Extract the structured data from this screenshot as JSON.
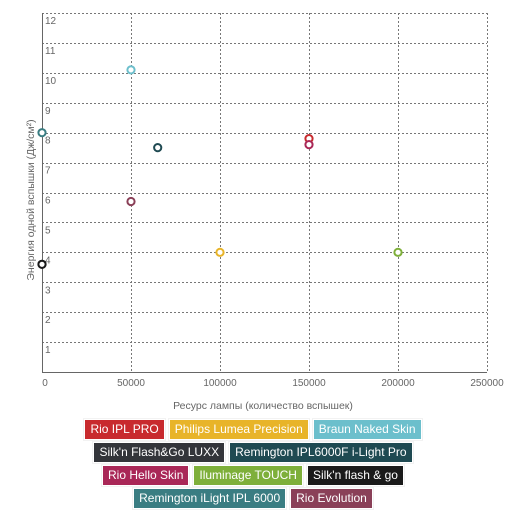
{
  "chart_data": {
    "type": "scatter",
    "xlabel": "Ресурс лампы (количество вспышек)",
    "ylabel": "Энергия одной вспышки (Дж/см²)",
    "xlim": [
      0,
      250000
    ],
    "ylim": [
      0,
      12
    ],
    "x_ticks": [
      "0",
      "50000",
      "100000",
      "150000",
      "200000",
      "250000"
    ],
    "y_ticks": [
      "1",
      "2",
      "3",
      "4",
      "5",
      "6",
      "7",
      "8",
      "9",
      "10",
      "11",
      "12"
    ],
    "grid": true,
    "legend_position": "bottom",
    "series": [
      {
        "name": "Rio IPL PRO",
        "color": "#c82a2e",
        "points": [
          {
            "x": 150000,
            "y": 7.8
          }
        ]
      },
      {
        "name": "Philips Lumea Precision",
        "color": "#e8b429",
        "points": [
          {
            "x": 100000,
            "y": 4.0
          }
        ]
      },
      {
        "name": "Braun Naked Skin",
        "color": "#6cbfcc",
        "points": [
          {
            "x": 50000,
            "y": 10.1
          }
        ]
      },
      {
        "name": "Silk'n Flash&Go LUXX",
        "color": "#33353a",
        "points": [
          {
            "x": 0,
            "y": 3.6
          }
        ]
      },
      {
        "name": "Remington IPL6000F i-Light Pro",
        "color": "#1f4a52",
        "points": [
          {
            "x": 65000,
            "y": 7.5
          }
        ]
      },
      {
        "name": "Rio Hello Skin",
        "color": "#a92757",
        "points": [
          {
            "x": 150000,
            "y": 7.6
          }
        ]
      },
      {
        "name": "Iluminage TOUCH",
        "color": "#7eaf3a",
        "points": [
          {
            "x": 200000,
            "y": 4.0
          }
        ]
      },
      {
        "name": "Silk'n flash & go",
        "color": "#1a1a1a",
        "points": [
          {
            "x": 0,
            "y": 3.6
          }
        ]
      },
      {
        "name": "Remington iLight IPL 6000",
        "color": "#3a7d82",
        "points": [
          {
            "x": 0,
            "y": 8.0
          }
        ]
      },
      {
        "name": "Rio Evolution",
        "color": "#8a4058",
        "points": [
          {
            "x": 50000,
            "y": 5.7
          }
        ]
      }
    ]
  }
}
